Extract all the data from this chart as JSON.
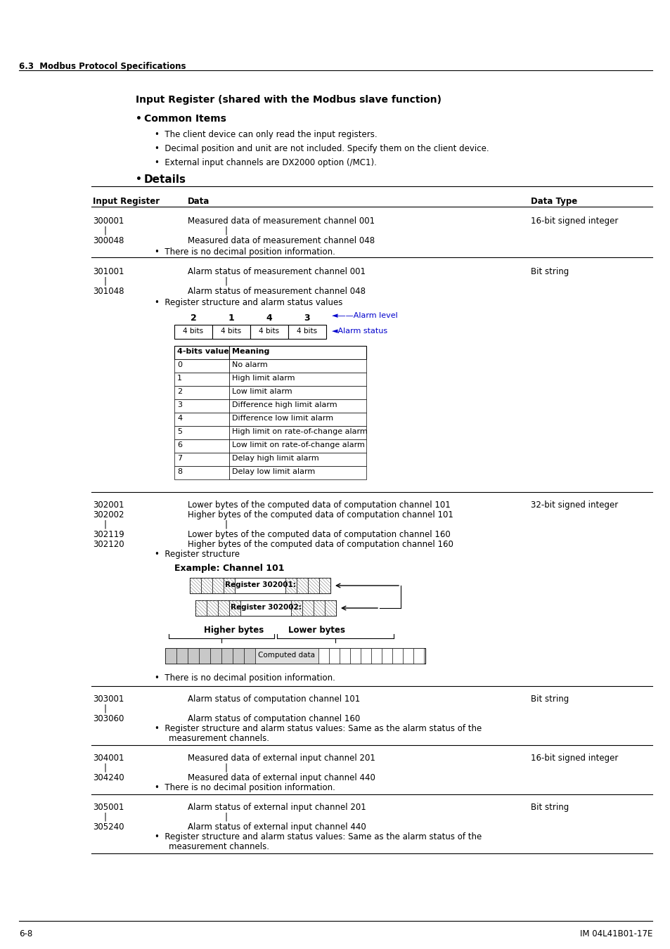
{
  "page_header": "6.3  Modbus Protocol Specifications",
  "page_footer_left": "6-8",
  "page_footer_right": "IM 04L41B01-17E",
  "section_title": "Input Register (shared with the Modbus slave function)",
  "common_items_title": "Common Items",
  "common_items": [
    "The client device can only read the input registers.",
    "Decimal position and unit are not included. Specify them on the client device.",
    "External input channels are DX2000 option (/MC1)."
  ],
  "details_title": "Details",
  "bg_color": "#ffffff",
  "blue_arrow_color": "#0000cc",
  "alarm_bits_labels": [
    "2",
    "1",
    "4",
    "3"
  ],
  "alarm_bits_widths": [
    "4 bits",
    "4 bits",
    "4 bits",
    "4 bits"
  ],
  "alarm_table_values": [
    "0",
    "1",
    "2",
    "3",
    "4",
    "5",
    "6",
    "7",
    "8"
  ],
  "alarm_table_meanings": [
    "No alarm",
    "High limit alarm",
    "Low limit alarm",
    "Difference high limit alarm",
    "Difference low limit alarm",
    "High limit on rate-of-change alarm",
    "Low limit on rate-of-change alarm",
    "Delay high limit alarm",
    "Delay low limit alarm"
  ]
}
